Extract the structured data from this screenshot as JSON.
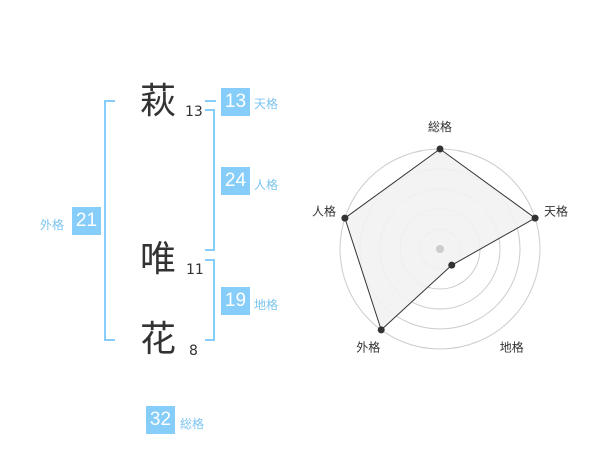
{
  "name_chars": [
    {
      "char": "萩",
      "strokes": "13"
    },
    {
      "char": "唯",
      "strokes": "11"
    },
    {
      "char": "花",
      "strokes": "8"
    }
  ],
  "fortunes": {
    "tenkaku": {
      "label": "天格",
      "value": "13"
    },
    "jinkaku": {
      "label": "人格",
      "value": "24"
    },
    "chikaku": {
      "label": "地格",
      "value": "19"
    },
    "gaikaku": {
      "label": "外格",
      "value": "21"
    },
    "soukaku": {
      "label": "総格",
      "value": "32"
    }
  },
  "colors": {
    "accent": "#86cdf9",
    "label": "#7cc4f0"
  },
  "chart_data": {
    "type": "radar",
    "axes": [
      "総格",
      "天格",
      "地格",
      "外格",
      "人格"
    ],
    "values": [
      5,
      5,
      1,
      5,
      5
    ],
    "range": [
      0,
      5
    ],
    "rings": 5
  }
}
